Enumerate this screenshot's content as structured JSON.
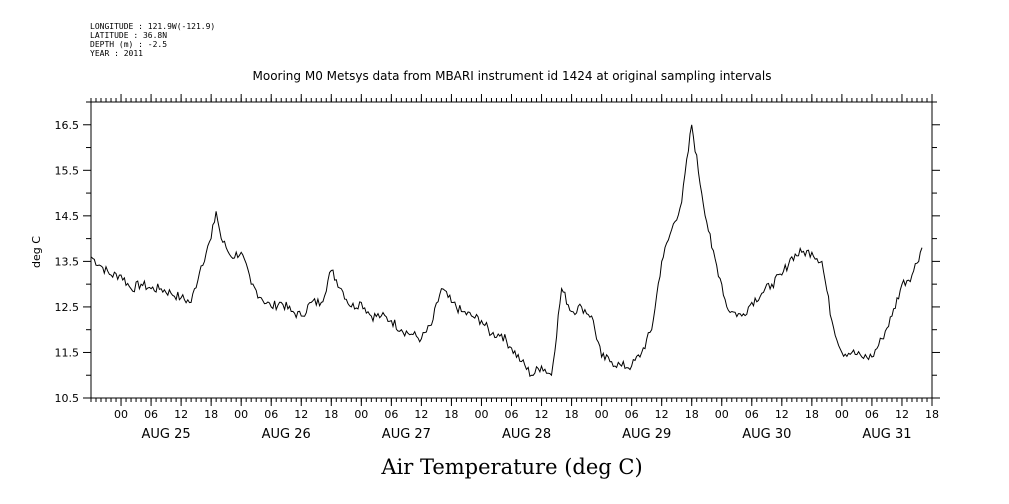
{
  "header": {
    "lines": [
      "LONGITUDE : 121.9W(-121.9)",
      "LATITUDE : 36.8N",
      "DEPTH (m) : -2.5",
      "YEAR : 2011"
    ]
  },
  "chart_data": {
    "type": "line",
    "title": "Mooring M0 Metsys data from MBARI instrument id 1424 at original sampling intervals",
    "xlabel": "Air Temperature (deg C)",
    "ylabel": "deg C",
    "ylim": [
      10.5,
      17.0
    ],
    "xlim": [
      -6,
      162
    ],
    "y_ticks": [
      "10.5",
      "11.5",
      "12.5",
      "13.5",
      "14.5",
      "15.5",
      "16.5"
    ],
    "x_hour_ticks": [
      "00",
      "06",
      "12",
      "18",
      "00",
      "06",
      "12",
      "18",
      "00",
      "06",
      "12",
      "18",
      "00",
      "06",
      "12",
      "18",
      "00",
      "06",
      "12",
      "18",
      "00",
      "06",
      "12",
      "18",
      "00",
      "06",
      "12",
      "18"
    ],
    "day_labels": [
      "AUG 25",
      "AUG 26",
      "AUG 27",
      "AUG 28",
      "AUG 29",
      "AUG 30",
      "AUG 31"
    ],
    "grid": false,
    "line_color": "#000000",
    "series": [
      {
        "x_hours_from_aug25_00": [
          -6,
          -4,
          -2,
          0,
          2,
          4,
          6,
          8,
          10,
          12,
          14,
          16,
          18,
          19,
          20,
          21,
          22,
          24,
          26,
          28,
          30,
          32,
          34,
          36,
          38,
          40,
          42,
          44,
          46,
          48,
          50,
          52,
          54,
          56,
          58,
          60,
          62,
          64,
          66,
          68,
          70,
          72,
          74,
          76,
          78,
          80,
          82,
          84,
          86,
          88,
          90,
          92,
          94,
          96,
          98,
          100,
          102,
          104,
          106,
          108,
          110,
          112,
          114,
          116,
          118,
          120,
          121,
          122,
          124,
          126,
          128,
          130,
          132,
          134,
          136,
          138,
          140,
          142,
          144,
          146,
          148,
          150,
          152,
          154,
          156,
          158,
          160
        ],
        "values": [
          13.6,
          13.4,
          13.2,
          13.2,
          12.9,
          13.0,
          12.9,
          12.9,
          12.8,
          12.7,
          12.6,
          13.4,
          14.0,
          14.6,
          14.0,
          13.8,
          13.6,
          13.7,
          13.0,
          12.7,
          12.5,
          12.6,
          12.4,
          12.3,
          12.6,
          12.6,
          13.3,
          12.9,
          12.5,
          12.6,
          12.3,
          12.3,
          12.2,
          12.0,
          11.9,
          11.8,
          12.1,
          12.9,
          12.6,
          12.4,
          12.3,
          12.2,
          11.9,
          11.9,
          11.6,
          11.3,
          11.0,
          11.2,
          11.0,
          12.9,
          12.4,
          12.5,
          12.3,
          11.4,
          11.3,
          11.2,
          11.2,
          11.5,
          12.0,
          13.5,
          14.2,
          14.8,
          16.5,
          15.0,
          13.8,
          13.0,
          12.5,
          12.4,
          12.3,
          12.6,
          12.8,
          13.0,
          13.2,
          13.6,
          13.7,
          13.7,
          13.5,
          12.2,
          11.5,
          11.5,
          11.4,
          11.4,
          11.8,
          12.3,
          13.0,
          13.2,
          13.8
        ]
      }
    ]
  }
}
